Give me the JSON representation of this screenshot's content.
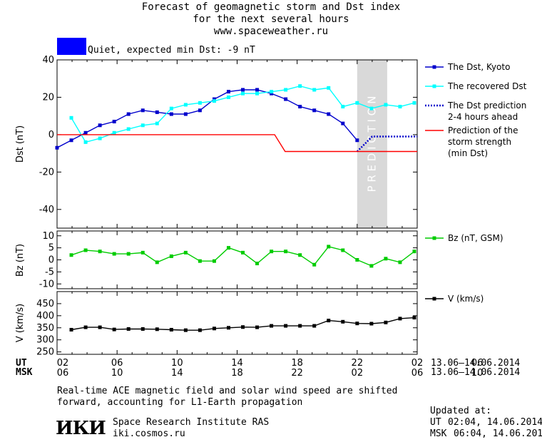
{
  "header": {
    "line1": "Forecast of geomagnetic storm and Dst index",
    "line2": "for the next several hours",
    "line3": "www.spaceweather.ru"
  },
  "status": {
    "color": "#0000ff",
    "text": "Quiet, expected min Dst: -9 nT"
  },
  "chart_data": [
    {
      "type": "line",
      "ylabel": "Dst (nT)",
      "ylim": [
        -50,
        40
      ],
      "yticks": [
        40,
        20,
        0,
        -20,
        -40
      ],
      "xlim": [
        0,
        24
      ],
      "prediction_label": "PREDICTION",
      "prediction_band": [
        20,
        22
      ],
      "series": [
        {
          "name": "The Dst, Kyoto",
          "color": "#0000cc",
          "marker": "square",
          "x": [
            0,
            1,
            2,
            3,
            4,
            5,
            6,
            7,
            8,
            9,
            10,
            11,
            12,
            13,
            14,
            15,
            16,
            17,
            18,
            19,
            20,
            21
          ],
          "y": [
            -7,
            -3,
            1,
            5,
            7,
            11,
            13,
            12,
            11,
            11,
            13,
            19,
            23,
            24,
            24,
            22,
            19,
            15,
            13,
            11,
            6,
            -3
          ]
        },
        {
          "name": "The recovered Dst",
          "color": "#00ffff",
          "marker": "square",
          "x": [
            1,
            2,
            3,
            4,
            5,
            6,
            7,
            8,
            9,
            10,
            11,
            12,
            13,
            14,
            15,
            16,
            17,
            18,
            19,
            20,
            21,
            22,
            23,
            24,
            25
          ],
          "y": [
            9,
            -4,
            -2,
            1,
            3,
            5,
            6,
            14,
            16,
            17,
            18,
            20,
            22,
            22,
            23,
            24,
            26,
            24,
            25,
            15,
            17,
            14,
            16,
            15,
            17
          ]
        },
        {
          "name": "The Dst prediction\n2-4 hours ahead",
          "color": "#0000cc",
          "style": "dotted",
          "x": [
            20.0,
            20.5,
            21,
            22,
            23,
            24
          ],
          "y": [
            -9,
            -5,
            -1,
            -1,
            -1,
            -1
          ]
        },
        {
          "name": "Prediction of the\nstorm strength\n(min Dst)",
          "color": "#ff0000",
          "x": [
            0,
            14.5,
            15.2,
            24
          ],
          "y": [
            0,
            0,
            -9,
            -9
          ]
        }
      ]
    },
    {
      "type": "line",
      "ylabel": "Bz (nT)",
      "ylim": [
        -12,
        12
      ],
      "yticks": [
        10,
        5,
        0,
        -5,
        -10
      ],
      "xlim": [
        0,
        24
      ],
      "series": [
        {
          "name": "Bz (nT, GSM)",
          "color": "#00cc00",
          "marker": "square",
          "x": [
            1,
            2,
            3,
            4,
            5,
            6,
            7,
            8,
            9,
            10,
            11,
            12,
            13,
            14,
            15,
            16,
            17,
            18,
            19,
            20,
            21,
            22,
            23,
            24,
            25
          ],
          "y": [
            2,
            4,
            3.5,
            2.5,
            2.5,
            3,
            -1,
            1.5,
            3,
            -0.5,
            -0.5,
            5,
            3,
            -1.5,
            3.5,
            3.5,
            2,
            -2,
            5.5,
            4,
            0,
            -2.5,
            0.5,
            -1,
            3.5
          ]
        }
      ]
    },
    {
      "type": "line",
      "ylabel": "V (km/s)",
      "ylim": [
        240,
        500
      ],
      "yticks": [
        450,
        400,
        350,
        300,
        250
      ],
      "xlim": [
        0,
        24
      ],
      "series": [
        {
          "name": "V (km/s)",
          "color": "#000000",
          "marker": "square",
          "x": [
            1,
            2,
            3,
            4,
            5,
            6,
            7,
            8,
            9,
            10,
            11,
            12,
            13,
            14,
            15,
            16,
            17,
            18,
            19,
            20,
            21,
            22,
            23,
            24,
            25
          ],
          "y": [
            342,
            352,
            352,
            343,
            345,
            345,
            344,
            342,
            340,
            340,
            347,
            350,
            353,
            352,
            358,
            358,
            358,
            358,
            380,
            375,
            368,
            367,
            372,
            388,
            392
          ]
        }
      ]
    }
  ],
  "xaxis": {
    "ut_label": "UT",
    "msk_label": "MSK",
    "ut_ticks": [
      "02",
      "06",
      "10",
      "14",
      "18",
      "22",
      "02",
      "06"
    ],
    "msk_ticks": [
      "06",
      "10",
      "14",
      "18",
      "22",
      "02",
      "06",
      "10"
    ],
    "date_range_ut": "13.06–14.06.2014",
    "date_range_msk": "13.06–14.06.2014"
  },
  "footer": {
    "note_line1": "Real-time ACE magnetic field and solar wind speed are shifted",
    "note_line2": "forward, accounting for L1-Earth propagation",
    "org_name": "Space Research Institute RAS",
    "org_url": "iki.cosmos.ru",
    "logo_text": "ИКИ",
    "updated_label": "Updated at:",
    "updated_ut_label": "UT",
    "updated_ut": "02:04, 14.06.2014",
    "updated_msk_label": "MSK",
    "updated_msk": "06:04, 14.06.2014"
  }
}
